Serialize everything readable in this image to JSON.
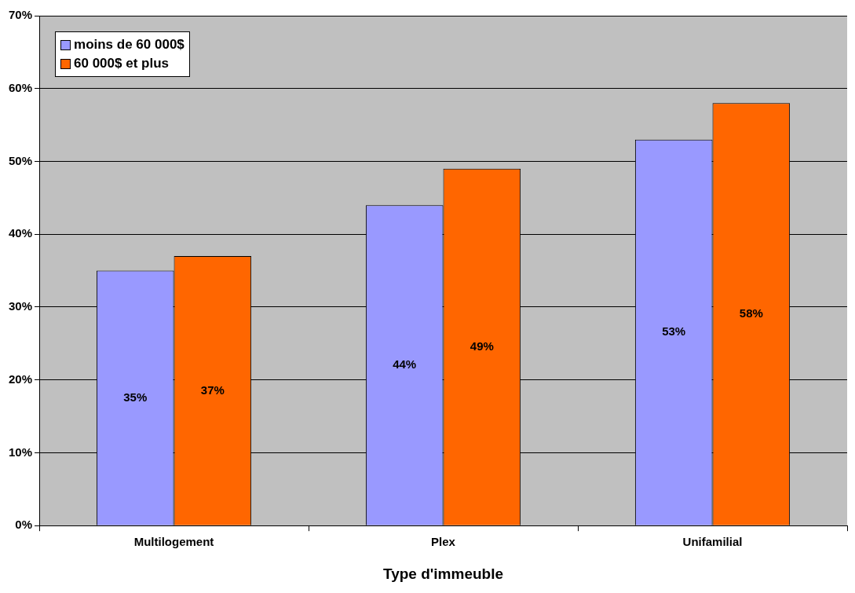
{
  "chart_data": {
    "type": "bar",
    "xlabel": "Type d'immeuble",
    "categories": [
      "Multilogement",
      "Plex",
      "Unifamilial"
    ],
    "series": [
      {
        "name": "moins de 60 000$",
        "color": "#9999ff",
        "values": [
          35,
          44,
          53
        ],
        "value_labels": [
          "35%",
          "44%",
          "53%"
        ]
      },
      {
        "name": "60 000$ et plus",
        "color": "#ff6600",
        "values": [
          37,
          49,
          58
        ],
        "value_labels": [
          "37%",
          "49%",
          "58%"
        ]
      }
    ],
    "ylim": [
      0,
      70
    ],
    "yticks": [
      {
        "value": 0,
        "label": "0%"
      },
      {
        "value": 10,
        "label": "10%"
      },
      {
        "value": 20,
        "label": "20%"
      },
      {
        "value": 30,
        "label": "30%"
      },
      {
        "value": 40,
        "label": "40%"
      },
      {
        "value": 50,
        "label": "50%"
      },
      {
        "value": 60,
        "label": "60%"
      },
      {
        "value": 70,
        "label": "70%"
      }
    ],
    "grid": "y",
    "legend": "top left"
  }
}
